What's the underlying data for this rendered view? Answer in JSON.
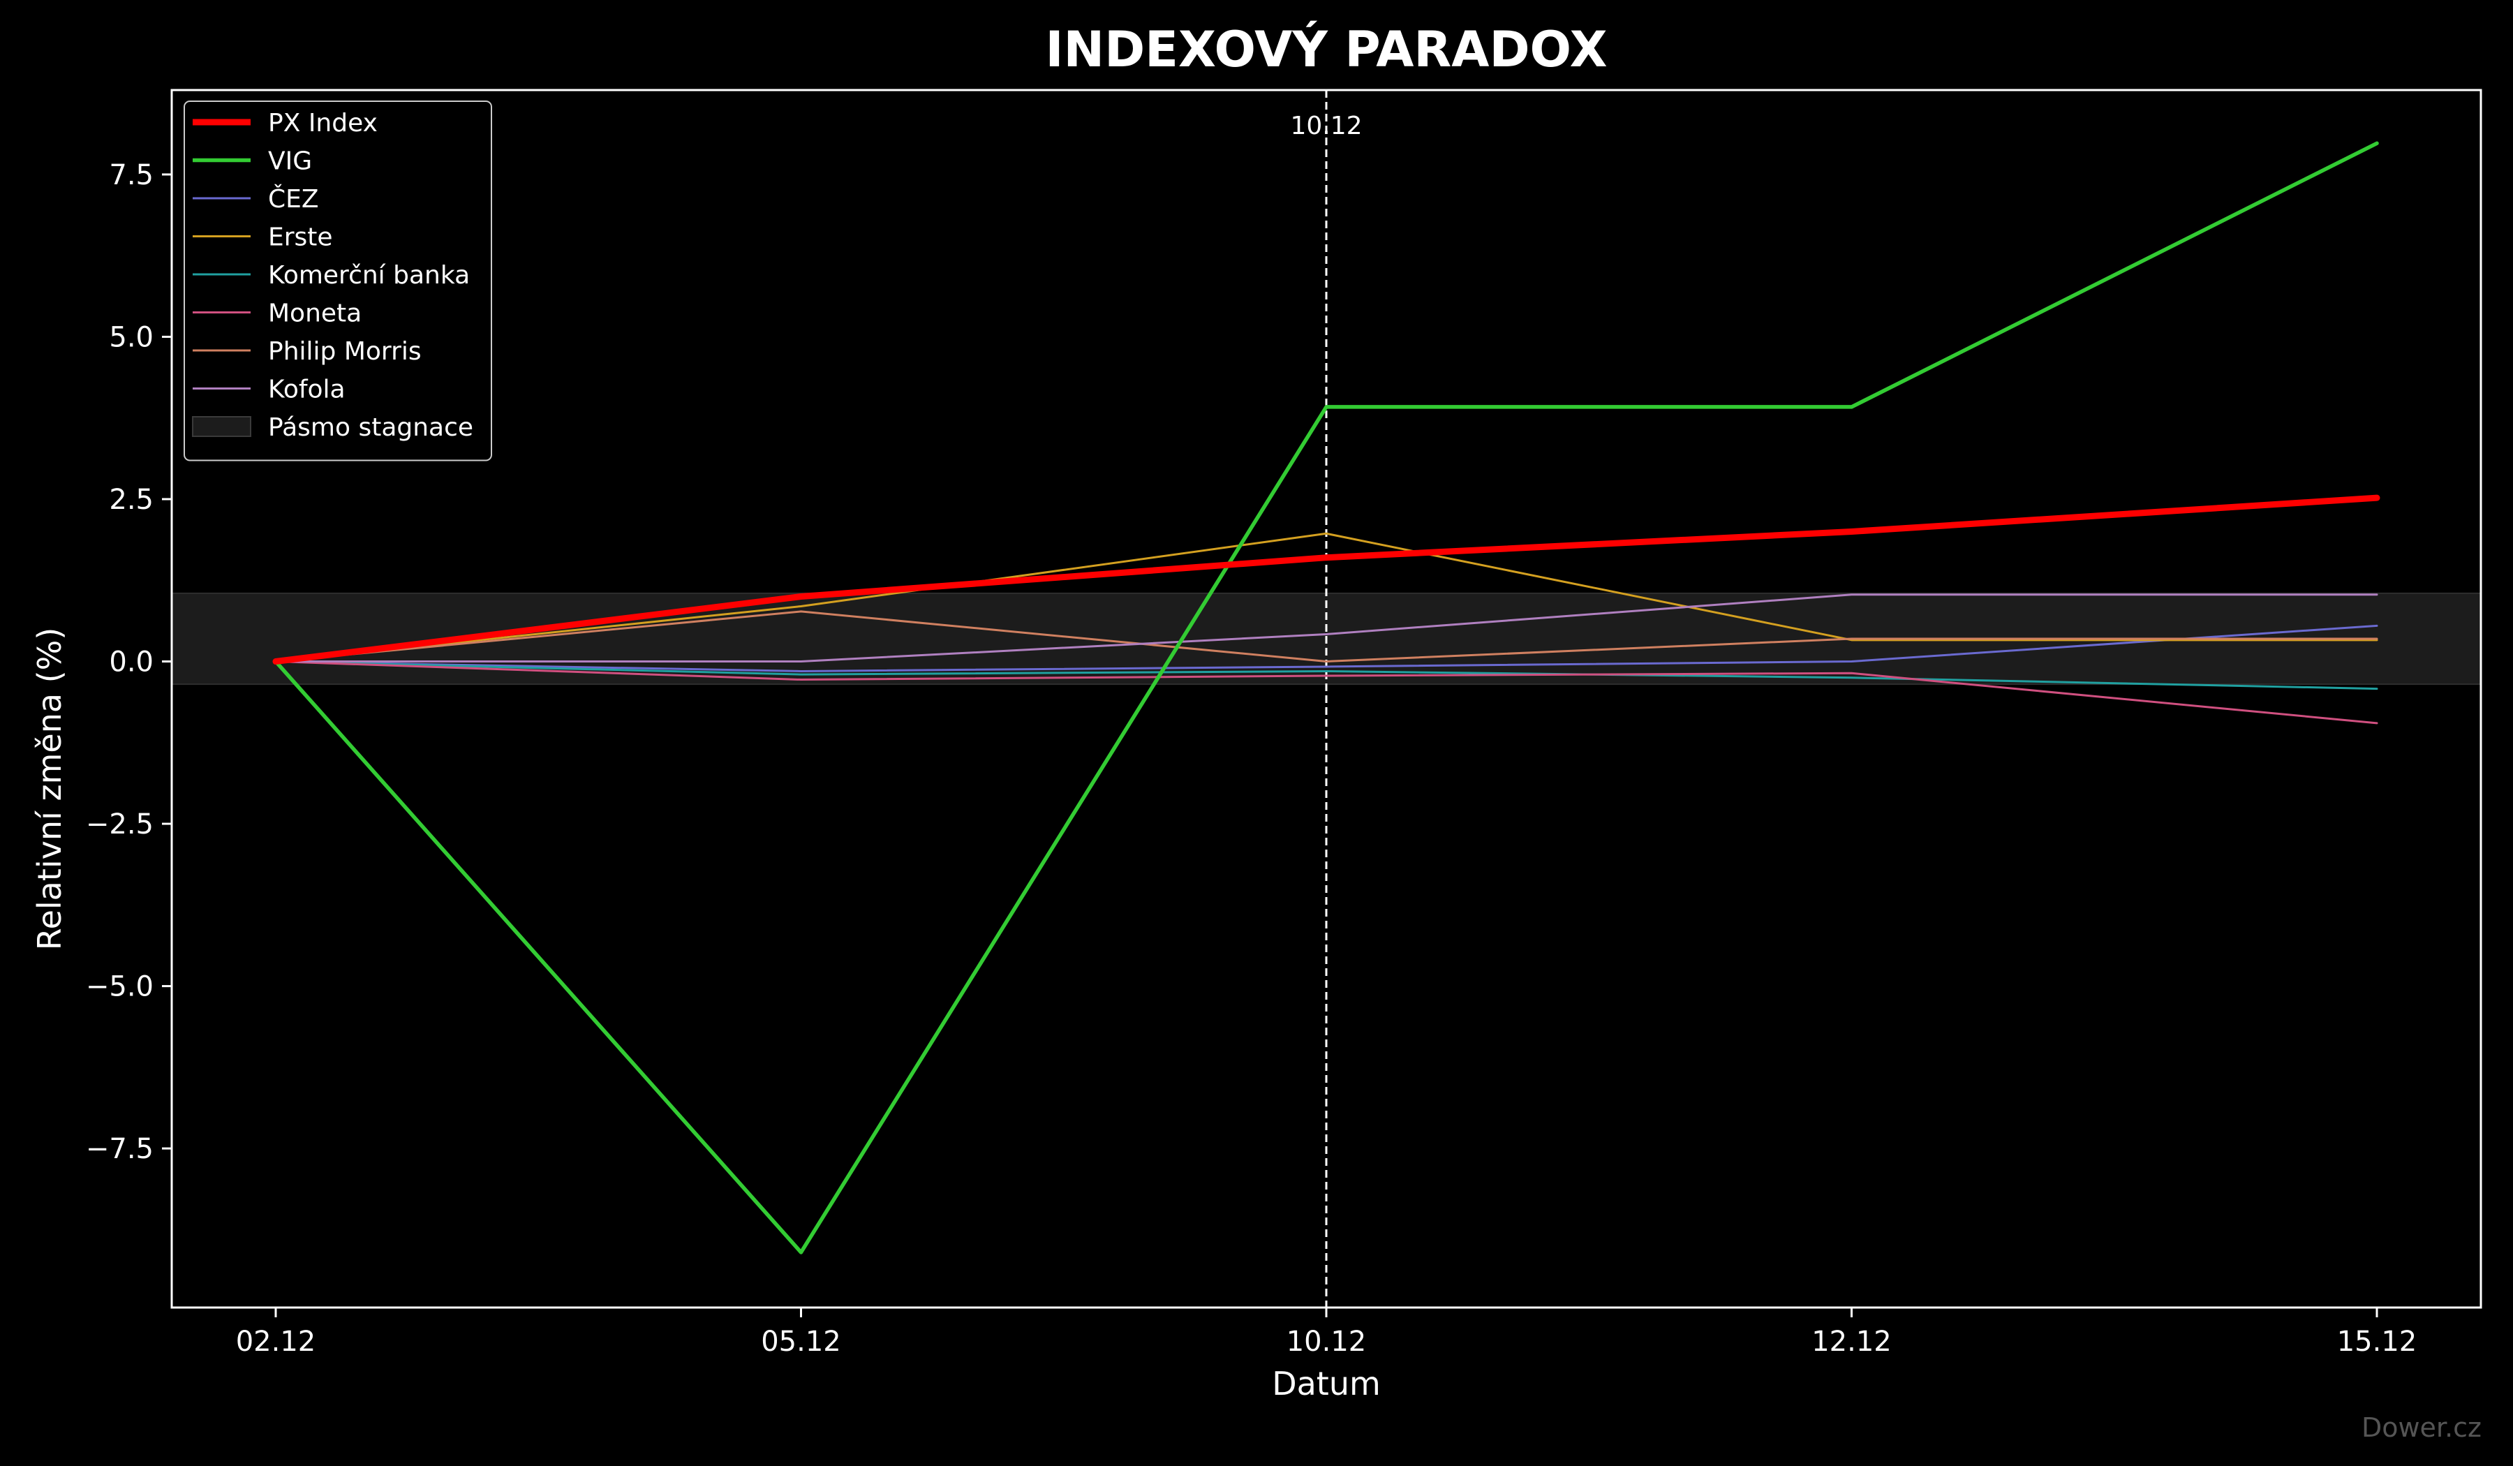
{
  "watermark": "Dower.cz",
  "chart_data": {
    "type": "line",
    "title": "INDEXOVÝ PARADOX",
    "xlabel": "Datum",
    "ylabel": "Relativní změna (%)",
    "categories": [
      "02.12",
      "05.12",
      "10.12",
      "12.12",
      "15.12"
    ],
    "ylim": [
      -9.95,
      8.8
    ],
    "yticks": [
      -7.5,
      -5.0,
      -2.5,
      0.0,
      2.5,
      5.0,
      7.5
    ],
    "ytick_labels": [
      "−7.5",
      "−5.0",
      "−2.5",
      "0.0",
      "2.5",
      "5.0",
      "7.5"
    ],
    "grid": false,
    "legend_position": "top-left",
    "band": {
      "name": "Pásmo stagnace",
      "y0": -0.35,
      "y1": 1.05,
      "color": "#1c1c1c"
    },
    "vline": {
      "category": "10.12",
      "label": "10.12",
      "color": "#ffffff"
    },
    "series": [
      {
        "name": "PX Index",
        "color": "#ff0000",
        "width": 9,
        "values": [
          0.0,
          1.0,
          1.6,
          2.0,
          2.52
        ]
      },
      {
        "name": "VIG",
        "color": "#33cc33",
        "width": 5.5,
        "values": [
          0.0,
          -9.1,
          3.92,
          3.92,
          7.98
        ]
      },
      {
        "name": "ČEZ",
        "color": "#6a6ad0",
        "width": 3,
        "values": [
          0.0,
          -0.15,
          -0.08,
          0.0,
          0.55
        ]
      },
      {
        "name": "Erste",
        "color": "#d4a020",
        "width": 3,
        "values": [
          0.0,
          0.85,
          1.97,
          0.33,
          0.33
        ]
      },
      {
        "name": "Komerční banka",
        "color": "#20a0a0",
        "width": 3,
        "values": [
          0.0,
          -0.2,
          -0.15,
          -0.25,
          -0.42
        ]
      },
      {
        "name": "Moneta",
        "color": "#d05080",
        "width": 3,
        "values": [
          0.0,
          -0.28,
          -0.22,
          -0.18,
          -0.95
        ]
      },
      {
        "name": "Philip Morris",
        "color": "#d08060",
        "width": 3,
        "values": [
          0.0,
          0.77,
          0.0,
          0.35,
          0.35
        ]
      },
      {
        "name": "Kofola",
        "color": "#b080c0",
        "width": 3,
        "values": [
          0.0,
          0.0,
          0.42,
          1.03,
          1.03
        ]
      }
    ]
  }
}
